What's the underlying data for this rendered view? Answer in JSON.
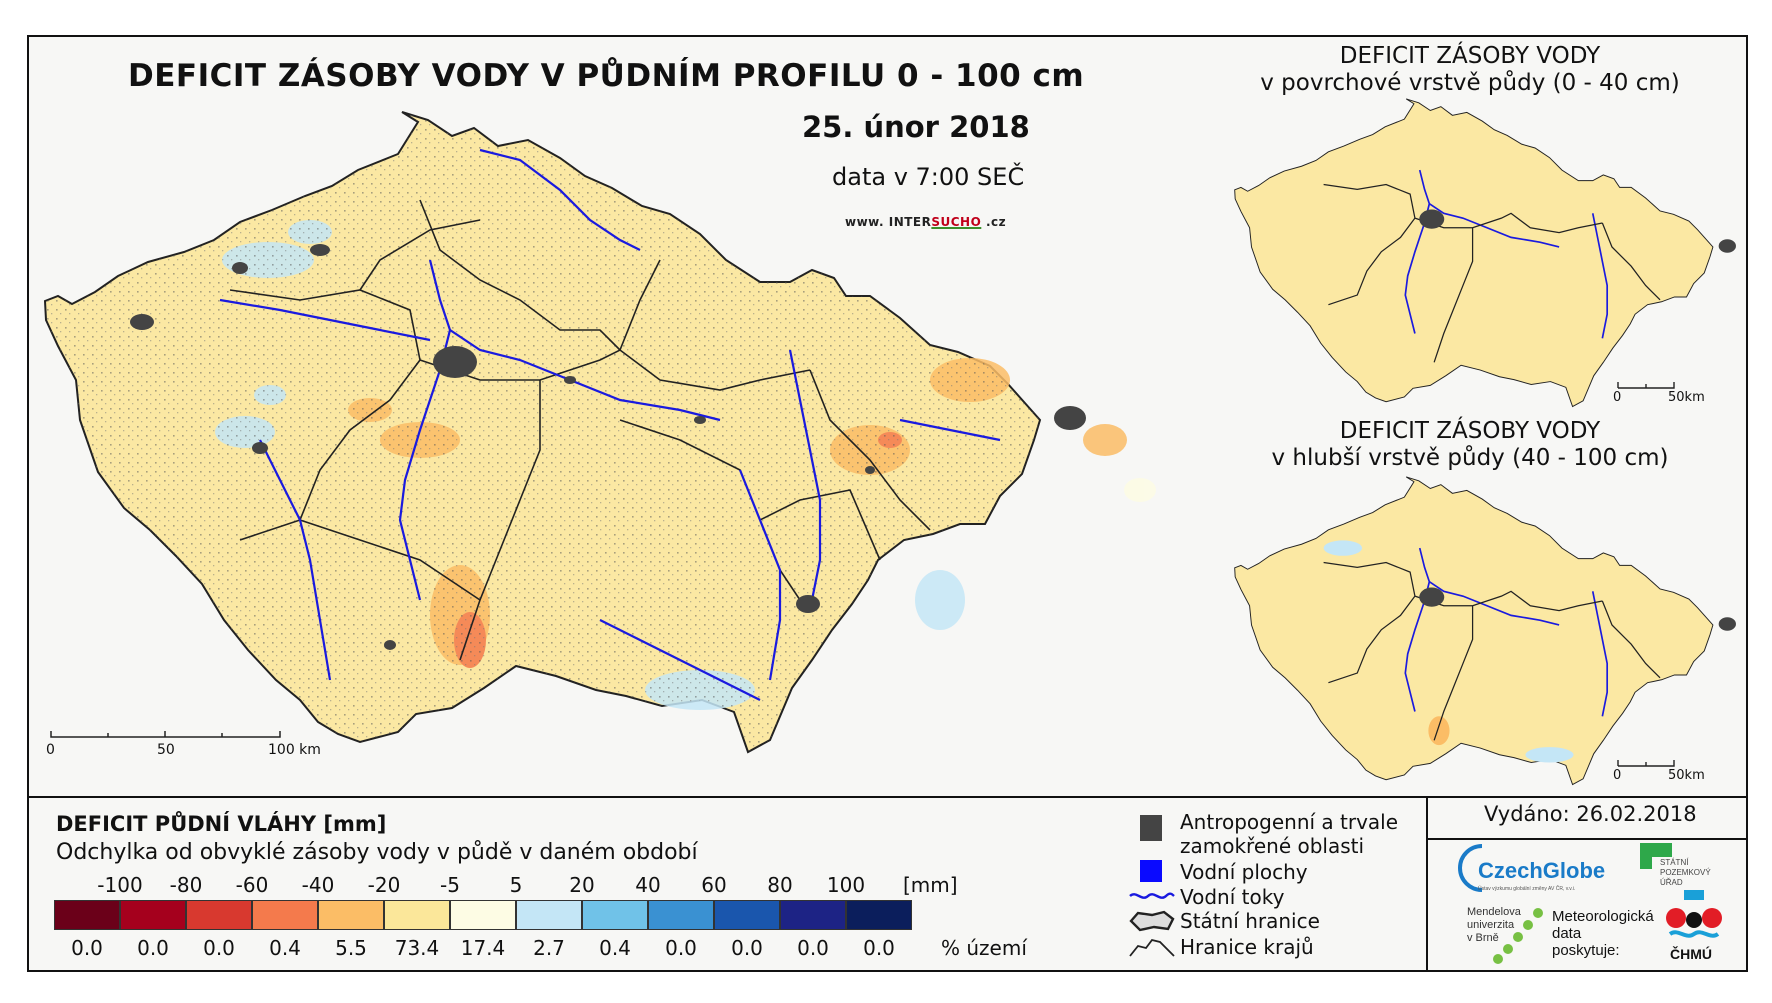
{
  "title": "DEFICIT ZÁSOBY VODY V PŮDNÍM PROFILU 0 - 100 cm",
  "date": "25. únor 2018",
  "time": "data v 7:00 SEČ",
  "website": {
    "prefix": "www. INTER",
    "highlight": "SUCHO",
    "suffix": " .cz"
  },
  "inset_top": {
    "line1": "DEFICIT ZÁSOBY VODY",
    "line2": "v povrchové vrstvě půdy (0 - 40 cm)"
  },
  "inset_bottom": {
    "line1": "DEFICIT ZÁSOBY VODY",
    "line2": "v hlubší vrstvě půdy (40 - 100 cm)"
  },
  "main_scale": {
    "labels": [
      "0",
      "50",
      "100 km"
    ]
  },
  "inset_scale": {
    "labels": [
      "0",
      "50km"
    ]
  },
  "legend": {
    "title": "DEFICIT PŮDNÍ VLÁHY [mm]",
    "subtitle": "Odchylka od obvyklé zásoby vody v půdě v daném období",
    "ticks": [
      "-100",
      "-80",
      "-60",
      "-40",
      "-20",
      "-5",
      "5",
      "20",
      "40",
      "60",
      "80",
      "100"
    ],
    "unit": "[mm]",
    "colors": [
      "#6b0019",
      "#a5001d",
      "#d8392f",
      "#f47a4c",
      "#fbbd66",
      "#fbe79a",
      "#fdfce4",
      "#c4e6f6",
      "#70c2e8",
      "#3a91d2",
      "#1a56ad",
      "#1d2385",
      "#0b1e5c"
    ],
    "percentages": [
      "0.0",
      "0.0",
      "0.0",
      "0.4",
      "5.5",
      "73.4",
      "17.4",
      "2.7",
      "0.4",
      "0.0",
      "0.0",
      "0.0",
      "0.0"
    ],
    "pct_unit": "% území"
  },
  "symbols": {
    "urban_line1": "Antropogenní a trvale",
    "urban_line2": "zamokřené oblasti",
    "water_bodies": "Vodní plochy",
    "rivers": "Vodní toky",
    "state_border": "Státní hranice",
    "region_border": "Hranice krajů"
  },
  "issued": "Vydáno: 26.02.2018",
  "logos": {
    "czechglobe": "CzechGlobe",
    "czechglobe_sub": "Ústav výzkumu globální změny AV ČR, v.v.i.",
    "spu_line1": "STÁTNÍ",
    "spu_line2": "POZEMKOVÝ",
    "spu_line3": "ÚŘAD",
    "mendelu_line1": "Mendelova",
    "mendelu_line2": "univerzita",
    "mendelu_line3": "v Brně",
    "met_line1": "Meteorologická",
    "met_line2": "data",
    "met_line3": "poskytuje:",
    "chmu": "ČHMÚ"
  },
  "colors": {
    "fill_main": "#fbe8a3",
    "fill_deep": "#fdfbe7",
    "river": "#1a1adf",
    "urban": "#444444"
  }
}
